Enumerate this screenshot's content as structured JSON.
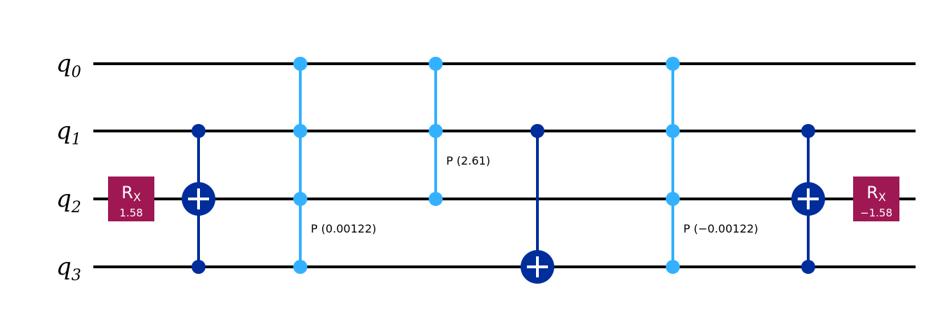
{
  "qubits": [
    {
      "label": "q",
      "index": "0"
    },
    {
      "label": "q",
      "index": "1"
    },
    {
      "label": "q",
      "index": "2"
    },
    {
      "label": "q",
      "index": "3"
    }
  ],
  "colors": {
    "wire": "#000000",
    "rx": "#9f1853",
    "cx": "#002d9c",
    "cp": "#33b1ff",
    "text_light": "#ffffff"
  },
  "gates": [
    {
      "type": "rx",
      "name": "R",
      "sub": "X",
      "param": "1.58",
      "qubit": 2,
      "col": 0
    },
    {
      "type": "cx",
      "control": 1,
      "target": 2,
      "col": 1,
      "extra_controls": [
        3
      ]
    },
    {
      "type": "mcp",
      "qubits": [
        0,
        1,
        2,
        3
      ],
      "label": "P (0.00122)",
      "col": 2
    },
    {
      "type": "mcp",
      "qubits": [
        0,
        1,
        2
      ],
      "label": "P (2.61)",
      "col": 3
    },
    {
      "type": "cx",
      "control": 1,
      "target": 3,
      "col": 4,
      "extra_controls": []
    },
    {
      "type": "mcp",
      "qubits": [
        0,
        1,
        2,
        3
      ],
      "label": "P (−0.00122)",
      "col": 5
    },
    {
      "type": "cx",
      "control": 1,
      "target": 2,
      "col": 6,
      "extra_controls": [
        3
      ]
    },
    {
      "type": "rx",
      "name": "R",
      "sub": "X",
      "param": "−1.58",
      "qubit": 2,
      "col": 7
    }
  ]
}
